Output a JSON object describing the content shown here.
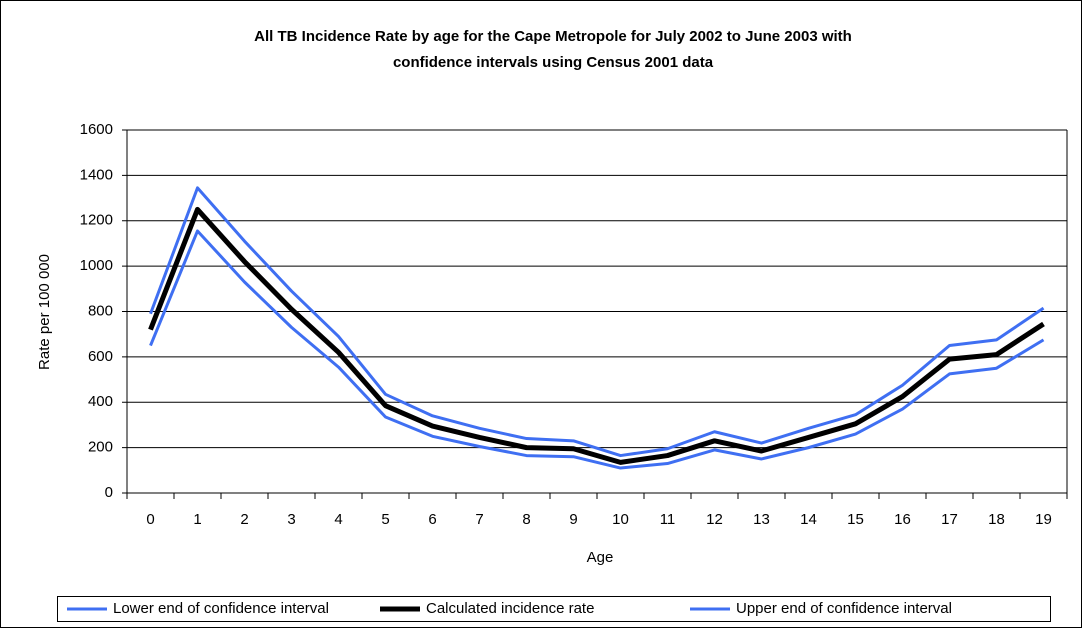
{
  "chart_data": {
    "type": "line",
    "title": [
      "All TB Incidence Rate by age for the Cape Metropole for July 2002 to June 2003 with",
      "confidence intervals using Census 2001 data"
    ],
    "x_label": "Age",
    "y_label": "Rate per 100 000",
    "categories": [
      "0",
      "1",
      "2",
      "3",
      "4",
      "5",
      "6",
      "7",
      "8",
      "9",
      "10",
      "11",
      "12",
      "13",
      "14",
      "15",
      "16",
      "17",
      "18",
      "19"
    ],
    "series": [
      {
        "name": "Lower end of confidence interval",
        "color": "#3f6ff2",
        "values": [
          650,
          1155,
          930,
          730,
          555,
          335,
          250,
          205,
          165,
          160,
          110,
          130,
          190,
          150,
          200,
          260,
          370,
          525,
          550,
          675
        ]
      },
      {
        "name": "Calculated incidence rate",
        "color": "#000000",
        "values": [
          720,
          1250,
          1020,
          810,
          620,
          385,
          295,
          245,
          200,
          195,
          135,
          165,
          230,
          185,
          245,
          305,
          425,
          590,
          610,
          745
        ]
      },
      {
        "name": "Upper end of confidence interval",
        "color": "#3f6ff2",
        "values": [
          790,
          1345,
          1110,
          890,
          690,
          435,
          340,
          285,
          240,
          230,
          165,
          195,
          270,
          220,
          285,
          345,
          475,
          650,
          675,
          815
        ]
      }
    ],
    "ylim": [
      0,
      1600
    ],
    "yticks": [
      0,
      200,
      400,
      600,
      800,
      1000,
      1200,
      1400,
      1600
    ],
    "grid": true,
    "legend": "bottom"
  }
}
